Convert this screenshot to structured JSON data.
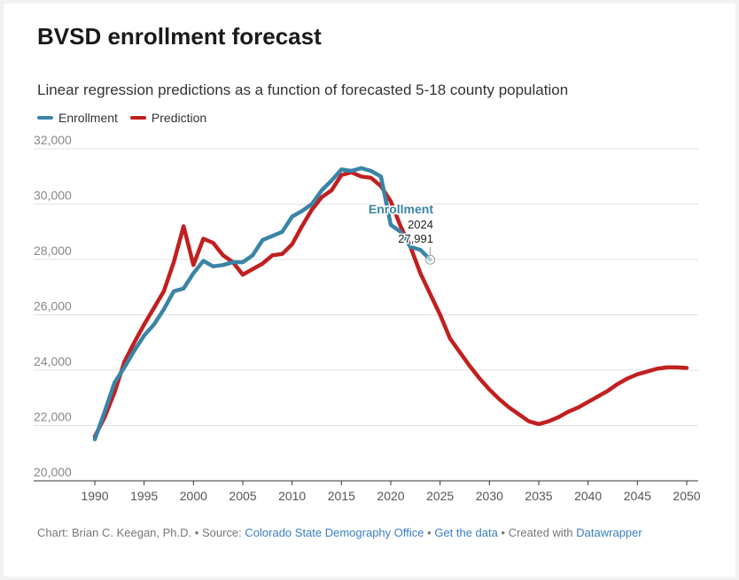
{
  "title": "BVSD enrollment forecast",
  "subtitle": "Linear regression predictions as a function of forecasted 5-18 county population",
  "footer": {
    "chart_by": "Chart: Brian C. Keegan, Ph.D.",
    "source_label": "Source:",
    "source_link": "Colorado State Demography Office",
    "data_link": "Get the data",
    "created_label": "Created with",
    "tool_link": "Datawrapper",
    "sep": "•"
  },
  "chart_data": {
    "type": "line",
    "title": "BVSD enrollment forecast",
    "xlim": [
      1990,
      2050
    ],
    "ylim": [
      20000,
      32000
    ],
    "x_ticks": [
      "1990",
      "1995",
      "2000",
      "2005",
      "2010",
      "2015",
      "2020",
      "2025",
      "2030",
      "2035",
      "2040",
      "2045",
      "2050"
    ],
    "y_ticks": [
      "20,000",
      "22,000",
      "24,000",
      "26,000",
      "28,000",
      "30,000",
      "32,000"
    ],
    "grid": true,
    "legend": "top-left",
    "annotation": {
      "label": "Enrollment",
      "year": "2024",
      "value": "27,991"
    },
    "series": [
      {
        "name": "Enrollment",
        "color": "#3a84a6",
        "x": [
          1990,
          1991,
          1992,
          1993,
          1994,
          1995,
          1996,
          1997,
          1998,
          1999,
          2000,
          2001,
          2002,
          2003,
          2004,
          2005,
          2006,
          2007,
          2008,
          2009,
          2010,
          2011,
          2012,
          2013,
          2014,
          2015,
          2016,
          2017,
          2018,
          2019,
          2020,
          2021,
          2022,
          2023,
          2024
        ],
        "values": [
          21500,
          22500,
          23550,
          24100,
          24700,
          25250,
          25650,
          26200,
          26850,
          26950,
          27500,
          27950,
          27750,
          27800,
          27900,
          27900,
          28150,
          28700,
          28850,
          29000,
          29550,
          29750,
          30000,
          30500,
          30850,
          31250,
          31200,
          31300,
          31200,
          31000,
          29250,
          29000,
          28450,
          28350,
          27991
        ]
      },
      {
        "name": "Prediction",
        "color": "#c0201f",
        "x": [
          1990,
          1991,
          1992,
          1993,
          1994,
          1995,
          1996,
          1997,
          1998,
          1999,
          2000,
          2001,
          2002,
          2003,
          2004,
          2005,
          2006,
          2007,
          2008,
          2009,
          2010,
          2011,
          2012,
          2013,
          2014,
          2015,
          2016,
          2017,
          2018,
          2019,
          2020,
          2021,
          2022,
          2023,
          2024,
          2025,
          2026,
          2027,
          2028,
          2029,
          2030,
          2031,
          2032,
          2033,
          2034,
          2035,
          2036,
          2037,
          2038,
          2039,
          2040,
          2041,
          2042,
          2043,
          2044,
          2045,
          2046,
          2047,
          2048,
          2049,
          2050
        ],
        "values": [
          21600,
          22300,
          23200,
          24300,
          25000,
          25650,
          26250,
          26850,
          27900,
          29200,
          27800,
          28750,
          28600,
          28150,
          27900,
          27450,
          27650,
          27850,
          28150,
          28200,
          28550,
          29200,
          29800,
          30250,
          30500,
          31050,
          31150,
          31000,
          30950,
          30650,
          30100,
          29200,
          28450,
          27500,
          26750,
          26000,
          25150,
          24650,
          24150,
          23700,
          23300,
          22950,
          22650,
          22400,
          22150,
          22050,
          22150,
          22300,
          22500,
          22650,
          22850,
          23050,
          23250,
          23500,
          23700,
          23850,
          23950,
          24050,
          24100,
          24100,
          24080
        ]
      }
    ]
  }
}
